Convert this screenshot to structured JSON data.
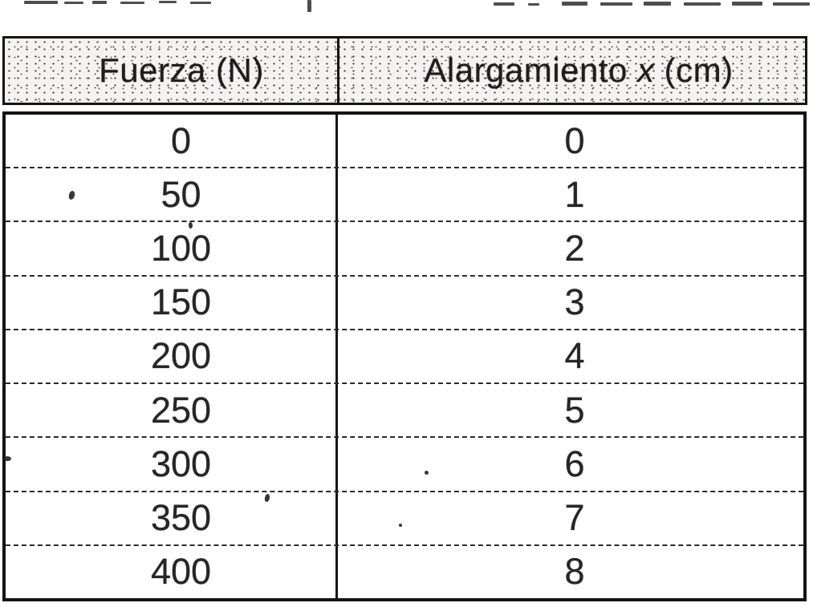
{
  "table": {
    "header": {
      "col1": "Fuerza (N)",
      "col2_prefix": "Alargamiento",
      "col2_variable": "x",
      "col2_suffix": "(cm)"
    },
    "rows": [
      {
        "fuerza": "0",
        "alargamiento": "0"
      },
      {
        "fuerza": "50",
        "alargamiento": "1"
      },
      {
        "fuerza": "100",
        "alargamiento": "2"
      },
      {
        "fuerza": "150",
        "alargamiento": "3"
      },
      {
        "fuerza": "200",
        "alargamiento": "4"
      },
      {
        "fuerza": "250",
        "alargamiento": "5"
      },
      {
        "fuerza": "300",
        "alargamiento": "6"
      },
      {
        "fuerza": "350",
        "alargamiento": "7"
      },
      {
        "fuerza": "400",
        "alargamiento": "8"
      }
    ]
  },
  "chart_data": {
    "type": "table",
    "columns": [
      "Fuerza (N)",
      "Alargamiento x (cm)"
    ],
    "rows": [
      [
        0,
        0
      ],
      [
        50,
        1
      ],
      [
        100,
        2
      ],
      [
        150,
        3
      ],
      [
        200,
        4
      ],
      [
        250,
        5
      ],
      [
        300,
        6
      ],
      [
        350,
        7
      ],
      [
        400,
        8
      ]
    ]
  },
  "colors": {
    "ink": "#1c1c1c",
    "paper": "#ffffff",
    "header_fill": "#f4f3f0"
  }
}
